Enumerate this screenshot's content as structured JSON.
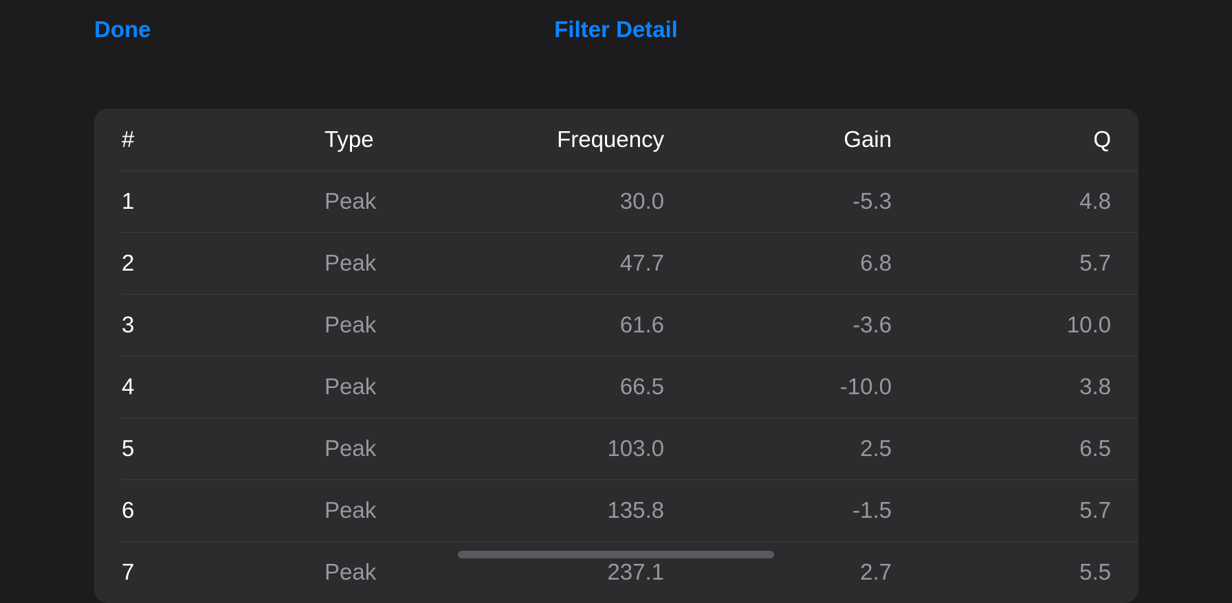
{
  "nav": {
    "done_label": "Done",
    "title": "Filter Detail"
  },
  "table": {
    "headers": {
      "num": "#",
      "type": "Type",
      "frequency": "Frequency",
      "gain": "Gain",
      "q": "Q"
    },
    "rows": [
      {
        "num": "1",
        "type": "Peak",
        "frequency": "30.0",
        "gain": "-5.3",
        "q": "4.8"
      },
      {
        "num": "2",
        "type": "Peak",
        "frequency": "47.7",
        "gain": "6.8",
        "q": "5.7"
      },
      {
        "num": "3",
        "type": "Peak",
        "frequency": "61.6",
        "gain": "-3.6",
        "q": "10.0"
      },
      {
        "num": "4",
        "type": "Peak",
        "frequency": "66.5",
        "gain": "-10.0",
        "q": "3.8"
      },
      {
        "num": "5",
        "type": "Peak",
        "frequency": "103.0",
        "gain": "2.5",
        "q": "6.5"
      },
      {
        "num": "6",
        "type": "Peak",
        "frequency": "135.8",
        "gain": "-1.5",
        "q": "5.7"
      },
      {
        "num": "7",
        "type": "Peak",
        "frequency": "237.1",
        "gain": "2.7",
        "q": "5.5"
      }
    ]
  },
  "colors": {
    "accent": "#0a84ff",
    "background": "#1c1c1e",
    "card": "#2c2c2e"
  }
}
